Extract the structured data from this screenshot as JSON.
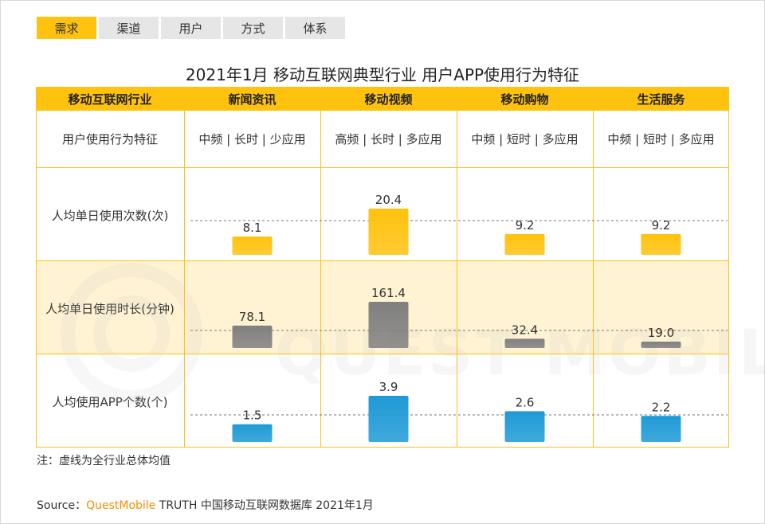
{
  "tabs": [
    {
      "label": "需求",
      "active": true
    },
    {
      "label": "渠道",
      "active": false
    },
    {
      "label": "用户",
      "active": false
    },
    {
      "label": "方式",
      "active": false
    },
    {
      "label": "体系",
      "active": false
    }
  ],
  "title": "2021年1月 移动互联网典型行业 用户APP使用行为特征",
  "table": {
    "corner_header": "移动互联网行业",
    "feature_label": "用户使用行为特征",
    "industries": [
      "新闻资讯",
      "移动视频",
      "移动购物",
      "生活服务"
    ],
    "features": [
      "中频 | 长时 | 少应用",
      "高频 | 长时 | 多应用",
      "中频 | 短时 | 多应用",
      "中频 | 短时 | 多应用"
    ]
  },
  "chart_data": {
    "type": "bar",
    "categories": [
      "新闻资讯",
      "移动视频",
      "移动购物",
      "生活服务"
    ],
    "metrics": [
      {
        "label": "人均单日使用次数(次)",
        "values": [
          8.1,
          20.4,
          9.2,
          9.2
        ],
        "display": [
          "8.1",
          "20.4",
          "9.2",
          "9.2"
        ],
        "color": "#ffc20e",
        "max": 20.4
      },
      {
        "label": "人均单日使用时长(分钟)",
        "values": [
          78.1,
          161.4,
          32.4,
          19.0
        ],
        "display": [
          "78.1",
          "161.4",
          "32.4",
          "19.0"
        ],
        "color": "#808080",
        "max": 161.4
      },
      {
        "label": "人均使用APP个数(个)",
        "values": [
          1.5,
          3.9,
          2.6,
          2.2
        ],
        "display": [
          "1.5",
          "3.9",
          "2.6",
          "2.2"
        ],
        "color": "#1e9ad6",
        "max": 3.9
      }
    ]
  },
  "note": "注：虚线为全行业总体均值",
  "source": {
    "prefix": "Source：",
    "brand": "QuestMobile",
    "suffix": " TRUTH 中国移动互联网数据库 2021年1月"
  },
  "watermark": "QUEST MOBILE"
}
